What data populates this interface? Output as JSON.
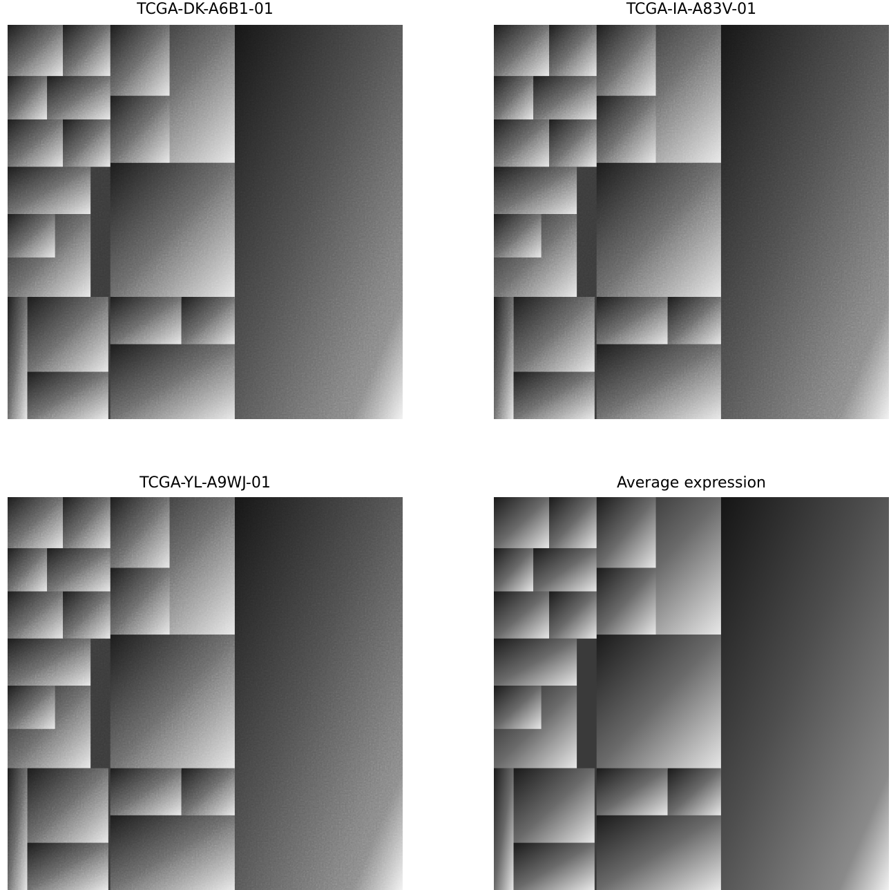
{
  "panels": [
    {
      "title": "TCGA-DK-A6B1-01"
    },
    {
      "title": "TCGA-IA-A83V-01"
    },
    {
      "title": "TCGA-YL-A9WJ-01"
    },
    {
      "title": "Average expression"
    }
  ]
}
